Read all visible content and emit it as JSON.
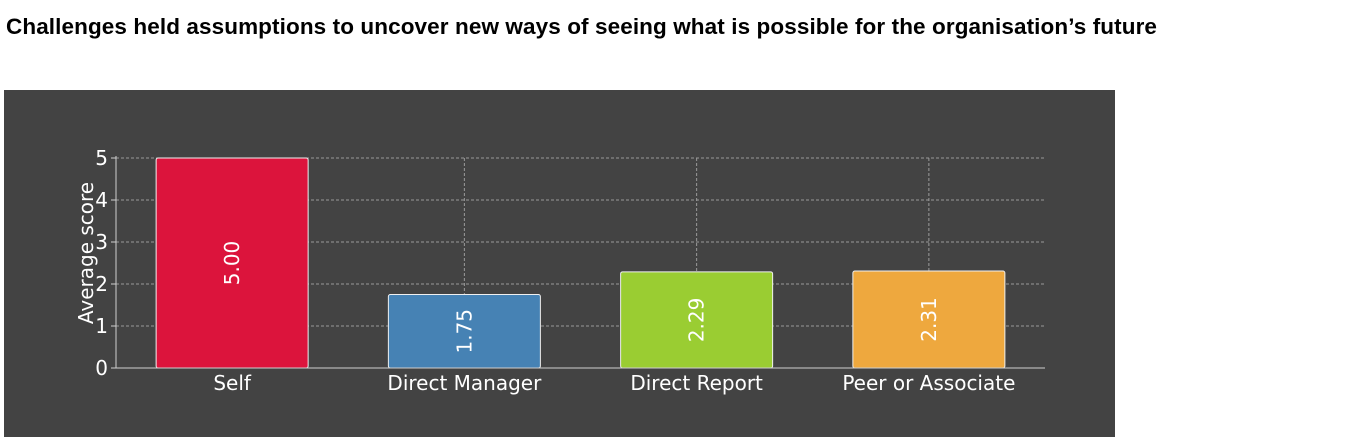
{
  "page": {
    "title": "Challenges held assumptions to uncover new ways of seeing what is possible for the organisation’s future"
  },
  "chart_data": {
    "type": "bar",
    "title": "",
    "xlabel": "",
    "ylabel": "Average score",
    "ylim": [
      0,
      5
    ],
    "yticks": [
      "0",
      "1",
      "2",
      "3",
      "4",
      "5"
    ],
    "grid": true,
    "categories": [
      "Self",
      "Direct Manager",
      "Direct Report",
      "Peer or Associate"
    ],
    "values": [
      5.0,
      1.75,
      2.29,
      2.31
    ],
    "data_labels": [
      "5.00",
      "1.75",
      "2.29",
      "2.31"
    ],
    "colors": [
      "#dc143c",
      "#4682b4",
      "#9acd32",
      "#eea83e"
    ],
    "background": "#434343",
    "text_color": "#ffffff"
  }
}
